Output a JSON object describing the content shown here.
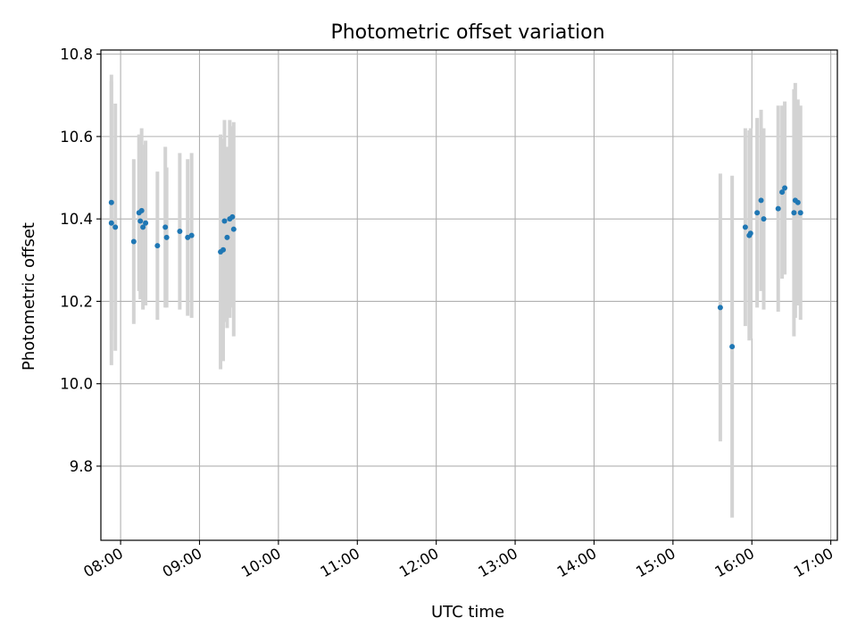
{
  "chart_data": {
    "type": "scatter",
    "title": "Photometric offset variation",
    "xlabel": "UTC time",
    "ylabel": "Photometric offset",
    "xlim": [
      "07:45",
      "17:05"
    ],
    "ylim": [
      9.62,
      10.81
    ],
    "x_ticks": [
      "08:00",
      "09:00",
      "10:00",
      "11:00",
      "12:00",
      "13:00",
      "14:00",
      "15:00",
      "16:00",
      "17:00"
    ],
    "y_ticks": [
      "9.8",
      "10.0",
      "10.2",
      "10.4",
      "10.6",
      "10.8"
    ],
    "grid": true,
    "legend": "none",
    "colors": {
      "points": "#1f77b4",
      "error_bars": "#d3d3d3",
      "grid": "#b0b0b0"
    },
    "series": [
      {
        "points": [
          {
            "x": "07:53",
            "y": 10.39,
            "err": 0.345
          },
          {
            "x": "07:53",
            "y": 10.44,
            "err": 0.31
          },
          {
            "x": "07:56",
            "y": 10.38,
            "err": 0.3
          },
          {
            "x": "08:10",
            "y": 10.345,
            "err": 0.2
          },
          {
            "x": "08:14",
            "y": 10.415,
            "err": 0.19
          },
          {
            "x": "08:15",
            "y": 10.395,
            "err": 0.19
          },
          {
            "x": "08:16",
            "y": 10.42,
            "err": 0.2
          },
          {
            "x": "08:17",
            "y": 10.38,
            "err": 0.2
          },
          {
            "x": "08:19",
            "y": 10.39,
            "err": 0.2
          },
          {
            "x": "08:28",
            "y": 10.335,
            "err": 0.18
          },
          {
            "x": "08:34",
            "y": 10.38,
            "err": 0.195
          },
          {
            "x": "08:35",
            "y": 10.355,
            "err": 0.17
          },
          {
            "x": "08:45",
            "y": 10.37,
            "err": 0.19
          },
          {
            "x": "08:51",
            "y": 10.355,
            "err": 0.19
          },
          {
            "x": "08:54",
            "y": 10.36,
            "err": 0.2
          },
          {
            "x": "09:16",
            "y": 10.32,
            "err": 0.285
          },
          {
            "x": "09:18",
            "y": 10.325,
            "err": 0.27
          },
          {
            "x": "09:19",
            "y": 10.395,
            "err": 0.245
          },
          {
            "x": "09:21",
            "y": 10.355,
            "err": 0.22
          },
          {
            "x": "09:23",
            "y": 10.4,
            "err": 0.24
          },
          {
            "x": "09:25",
            "y": 10.405,
            "err": 0.22
          },
          {
            "x": "09:26",
            "y": 10.375,
            "err": 0.26
          },
          {
            "x": "15:36",
            "y": 10.185,
            "err": 0.325
          },
          {
            "x": "15:45",
            "y": 10.09,
            "err": 0.415
          },
          {
            "x": "15:55",
            "y": 10.38,
            "err": 0.24
          },
          {
            "x": "15:58",
            "y": 10.36,
            "err": 0.255
          },
          {
            "x": "15:59",
            "y": 10.365,
            "err": 0.255
          },
          {
            "x": "16:04",
            "y": 10.415,
            "err": 0.23
          },
          {
            "x": "16:07",
            "y": 10.445,
            "err": 0.22
          },
          {
            "x": "16:09",
            "y": 10.4,
            "err": 0.22
          },
          {
            "x": "16:20",
            "y": 10.425,
            "err": 0.25
          },
          {
            "x": "16:23",
            "y": 10.465,
            "err": 0.21
          },
          {
            "x": "16:25",
            "y": 10.475,
            "err": 0.21
          },
          {
            "x": "16:32",
            "y": 10.415,
            "err": 0.3
          },
          {
            "x": "16:33",
            "y": 10.445,
            "err": 0.285
          },
          {
            "x": "16:35",
            "y": 10.44,
            "err": 0.25
          },
          {
            "x": "16:37",
            "y": 10.415,
            "err": 0.26
          }
        ]
      }
    ]
  }
}
